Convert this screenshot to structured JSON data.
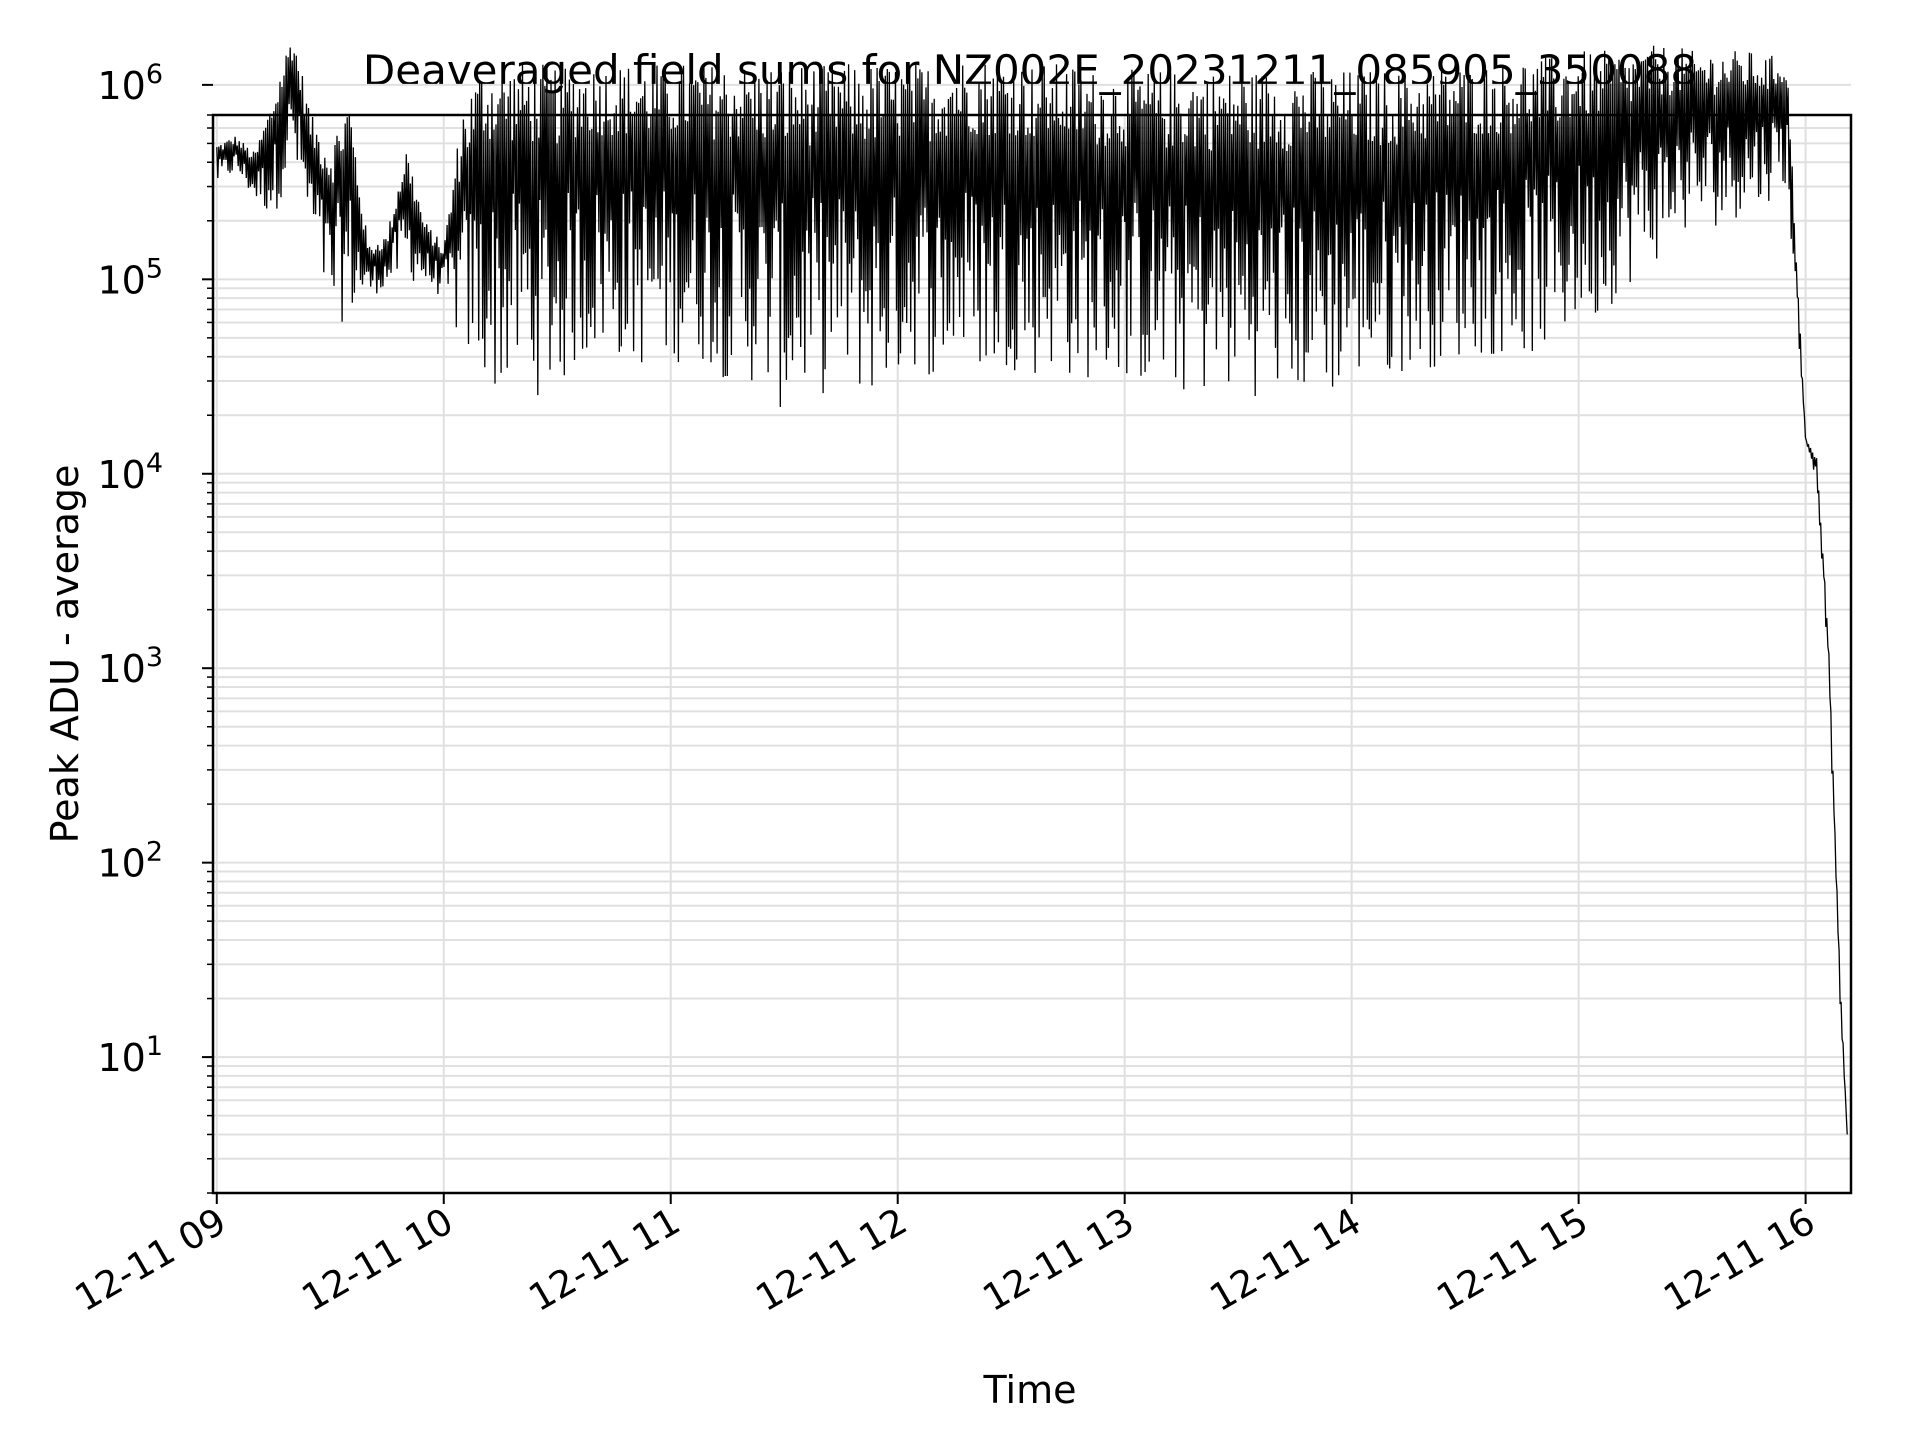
{
  "chart_data": {
    "type": "line",
    "title": "Deaveraged field sums for NZ002E_20231211_085905_350088",
    "xlabel": "Time",
    "ylabel": "Peak ADU - average",
    "x_scale": "time",
    "y_scale": "log",
    "xlim": [
      "2023-12-11 08:59",
      "2023-12-11 16:12"
    ],
    "ylim": [
      2,
      700000
    ],
    "grid": true,
    "line_color": "#000000",
    "grid_color": "#e0e0e0",
    "x_ticks": [
      {
        "value": "2023-12-11 09:00",
        "label": "12-11 09"
      },
      {
        "value": "2023-12-11 10:00",
        "label": "12-11 10"
      },
      {
        "value": "2023-12-11 11:00",
        "label": "12-11 11"
      },
      {
        "value": "2023-12-11 12:00",
        "label": "12-11 12"
      },
      {
        "value": "2023-12-11 13:00",
        "label": "12-11 13"
      },
      {
        "value": "2023-12-11 14:00",
        "label": "12-11 14"
      },
      {
        "value": "2023-12-11 15:00",
        "label": "12-11 15"
      },
      {
        "value": "2023-12-11 16:00",
        "label": "12-11 16"
      }
    ],
    "y_ticks": [
      {
        "value": 10,
        "base": "10",
        "exp": "1"
      },
      {
        "value": 100,
        "base": "10",
        "exp": "2"
      },
      {
        "value": 1000,
        "base": "10",
        "exp": "3"
      },
      {
        "value": 10000,
        "base": "10",
        "exp": "4"
      },
      {
        "value": 100000,
        "base": "10",
        "exp": "5"
      },
      {
        "value": 1000000,
        "base": "10",
        "exp": "6"
      }
    ],
    "series": [
      {
        "x": [
          "2023-12-11 09:00",
          "2023-12-11 09:05",
          "2023-12-11 09:10",
          "2023-12-11 09:15",
          "2023-12-11 09:20",
          "2023-12-11 09:25",
          "2023-12-11 09:30",
          "2023-12-11 09:35",
          "2023-12-11 09:40",
          "2023-12-11 09:45",
          "2023-12-11 09:50",
          "2023-12-11 09:55",
          "2023-12-11 10:00",
          "2023-12-11 10:05",
          "2023-12-11 10:10",
          "2023-12-11 10:15",
          "2023-12-11 10:20",
          "2023-12-11 10:25",
          "2023-12-11 10:30",
          "2023-12-11 10:35",
          "2023-12-11 10:40",
          "2023-12-11 10:45",
          "2023-12-11 10:50",
          "2023-12-11 10:55",
          "2023-12-11 11:00",
          "2023-12-11 11:05",
          "2023-12-11 11:10",
          "2023-12-11 11:15",
          "2023-12-11 11:20",
          "2023-12-11 11:25",
          "2023-12-11 11:30",
          "2023-12-11 11:35",
          "2023-12-11 11:40",
          "2023-12-11 11:45",
          "2023-12-11 11:50",
          "2023-12-11 11:55",
          "2023-12-11 12:00",
          "2023-12-11 12:05",
          "2023-12-11 12:10",
          "2023-12-11 12:15",
          "2023-12-11 12:20",
          "2023-12-11 12:25",
          "2023-12-11 12:30",
          "2023-12-11 12:35",
          "2023-12-11 12:40",
          "2023-12-11 12:45",
          "2023-12-11 12:50",
          "2023-12-11 12:55",
          "2023-12-11 13:00",
          "2023-12-11 13:05",
          "2023-12-11 13:10",
          "2023-12-11 13:15",
          "2023-12-11 13:20",
          "2023-12-11 13:25",
          "2023-12-11 13:30",
          "2023-12-11 13:35",
          "2023-12-11 13:40",
          "2023-12-11 13:45",
          "2023-12-11 13:50",
          "2023-12-11 13:55",
          "2023-12-11 14:00",
          "2023-12-11 14:05",
          "2023-12-11 14:10",
          "2023-12-11 14:15",
          "2023-12-11 14:20",
          "2023-12-11 14:25",
          "2023-12-11 14:30",
          "2023-12-11 14:35",
          "2023-12-11 14:40",
          "2023-12-11 14:45",
          "2023-12-11 14:50",
          "2023-12-11 14:55",
          "2023-12-11 15:00",
          "2023-12-11 15:05",
          "2023-12-11 15:10",
          "2023-12-11 15:15",
          "2023-12-11 15:20",
          "2023-12-11 15:25",
          "2023-12-11 15:30",
          "2023-12-11 15:35",
          "2023-12-11 15:40",
          "2023-12-11 15:45",
          "2023-12-11 15:50",
          "2023-12-11 15:55",
          "2023-12-11 16:00",
          "2023-12-11 16:03",
          "2023-12-11 16:06",
          "2023-12-11 16:09",
          "2023-12-11 16:11"
        ],
        "upper": [
          500000,
          550000,
          450000,
          900000,
          2000000,
          700000,
          500000,
          900000,
          150000,
          170000,
          500000,
          200000,
          150000,
          800000,
          1300000,
          1300000,
          1300000,
          1300000,
          1300000,
          1300000,
          1300000,
          1300000,
          1300000,
          1300000,
          1300000,
          1300000,
          1300000,
          1300000,
          1300000,
          1300000,
          1300000,
          1300000,
          1300000,
          1300000,
          1300000,
          1300000,
          1300000,
          1300000,
          1300000,
          1400000,
          1400000,
          1400000,
          1400000,
          1300000,
          1300000,
          1300000,
          1200000,
          1200000,
          1200000,
          1200000,
          1200000,
          1200000,
          1200000,
          1200000,
          1200000,
          1200000,
          1200000,
          1200000,
          1200000,
          1200000,
          1200000,
          1200000,
          1200000,
          1200000,
          1200000,
          1300000,
          1300000,
          1300000,
          1300000,
          1400000,
          1400000,
          1400000,
          1500000,
          1500000,
          1500000,
          1500000,
          1600000,
          1600000,
          1500000,
          1500000,
          1500000,
          1500000,
          1400000,
          1500000,
          15000,
          12000,
          1500,
          30,
          4
        ],
        "lower": [
          300000,
          350000,
          250000,
          200000,
          400000,
          150000,
          60000,
          60000,
          80000,
          90000,
          100000,
          90000,
          80000,
          40000,
          30000,
          25000,
          30000,
          25000,
          25000,
          35000,
          40000,
          40000,
          35000,
          35000,
          35000,
          40000,
          35000,
          30000,
          30000,
          25000,
          20000,
          25000,
          25000,
          30000,
          25000,
          25000,
          30000,
          35000,
          30000,
          35000,
          35000,
          30000,
          35000,
          30000,
          35000,
          30000,
          30000,
          30000,
          30000,
          28000,
          25000,
          25000,
          25000,
          25000,
          25000,
          25000,
          25000,
          25000,
          25000,
          25000,
          30000,
          30000,
          30000,
          35000,
          35000,
          35000,
          40000,
          40000,
          40000,
          40000,
          40000,
          45000,
          60000,
          60000,
          80000,
          100000,
          120000,
          150000,
          180000,
          180000,
          200000,
          220000,
          250000,
          300000,
          15000,
          9000,
          1000,
          20,
          4
        ]
      }
    ]
  }
}
